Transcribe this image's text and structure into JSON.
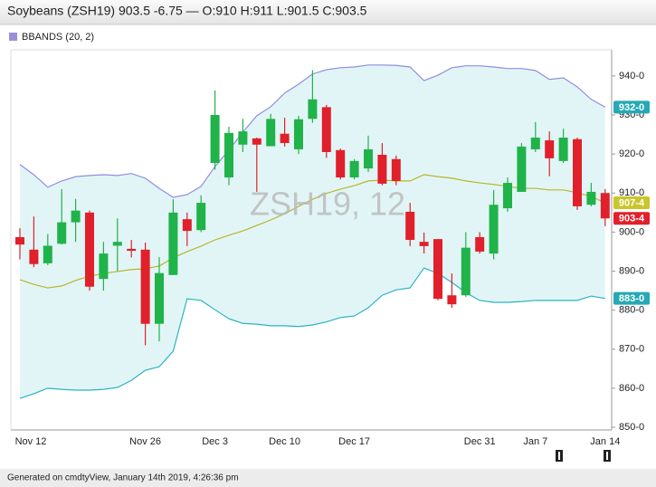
{
  "chart_data": {
    "type": "candlestick",
    "title": "Soybeans (ZSH19) 903.5 -6.75 — O:910 H:911 L:901.5 C:903.5",
    "watermark": "ZSH19, 12",
    "footer": "Generated on cmdtyView, January 14th 2019, 4:26:36 pm",
    "categories": [
      "Nov 12",
      null,
      null,
      null,
      null,
      null,
      null,
      null,
      null,
      "Nov 26",
      null,
      null,
      null,
      null,
      "Dec 3",
      null,
      null,
      null,
      null,
      "Dec 10",
      null,
      null,
      null,
      null,
      "Dec 17",
      null,
      null,
      null,
      null,
      null,
      null,
      null,
      null,
      "Dec 31",
      null,
      null,
      null,
      "Jan 7",
      null,
      null,
      null,
      null,
      "Jan 14"
    ],
    "up_color": "#1fb34a",
    "down_color": "#e0202a",
    "open": [
      898.7,
      895.5,
      892,
      897,
      902.5,
      905,
      888,
      896.5,
      895.7,
      895.5,
      876.5,
      889,
      903.3,
      900.5,
      917.7,
      914,
      922.4,
      924,
      922,
      925.2,
      921.2,
      929,
      932,
      921,
      914,
      916.3,
      919.8,
      918.7,
      905.2,
      897.5,
      898.2,
      883.8,
      883.8,
      898.7,
      894.5,
      906.1,
      910.3,
      921.2,
      923.5,
      918.2,
      923.8,
      907,
      910
    ],
    "high": [
      901,
      904,
      899.5,
      911,
      908.5,
      905.5,
      897.5,
      903.5,
      898,
      897.3,
      893.6,
      908.4,
      905,
      909.4,
      936.3,
      927,
      929,
      924.2,
      930.3,
      929.3,
      929.8,
      941.5,
      932.6,
      921.4,
      918.7,
      924.7,
      922.8,
      919.6,
      907.5,
      899.9,
      898.2,
      889.4,
      900,
      900,
      910.8,
      914,
      922.8,
      928.2,
      925.8,
      926.5,
      924.2,
      912.6,
      911
    ],
    "low": [
      893,
      891,
      891.5,
      896.8,
      897.5,
      885,
      885,
      890,
      893.5,
      871,
      872,
      889,
      896.4,
      900,
      916,
      912,
      920.5,
      910.3,
      922,
      921.9,
      920,
      928,
      919,
      913.5,
      913.5,
      915.4,
      912,
      912,
      896.4,
      894.5,
      882.5,
      880.6,
      883.4,
      894.5,
      893,
      905.2,
      910.3,
      920.5,
      914.3,
      917.7,
      905.7,
      906.6,
      901.5
    ],
    "close": [
      896.8,
      891.8,
      896.5,
      902.5,
      905.5,
      886,
      894.5,
      897.5,
      895.2,
      876.5,
      889.5,
      905,
      900.3,
      907.5,
      930,
      925.4,
      925.8,
      922.4,
      929,
      922.8,
      928.9,
      934,
      920.5,
      914,
      918.2,
      921.2,
      912.4,
      913.1,
      898,
      896.4,
      882.9,
      881.5,
      896,
      895,
      907,
      912.6,
      921.9,
      924.2,
      918.9,
      924.2,
      906.6,
      910.3,
      903.5
    ],
    "indicator": {
      "name": "BBANDS (20, 2)",
      "color": "#9b8fd9",
      "fill": "#e2f5f6",
      "upper_color": "#8e8ee0",
      "middle_color": "#b8b62c",
      "lower_color": "#2ab3c4",
      "upper": [
        917.3,
        914.7,
        911.5,
        913.1,
        914.2,
        914.5,
        914.7,
        914.5,
        915,
        913.8,
        911.2,
        908.9,
        909.6,
        911.7,
        916.8,
        921,
        925.6,
        929.8,
        932.1,
        935.6,
        937.9,
        940.5,
        941.6,
        942.1,
        942.3,
        942.8,
        942.8,
        942.7,
        942.3,
        938.8,
        940.2,
        942.1,
        942.6,
        942.6,
        942.3,
        941.9,
        941.9,
        941.4,
        939.1,
        939.5,
        937.2,
        934,
        932
      ],
      "middle": [
        887.8,
        886.6,
        885.7,
        886.2,
        887.6,
        888.7,
        889.4,
        889.9,
        890.4,
        890.6,
        891.3,
        893.4,
        895,
        896.4,
        898,
        899.2,
        900.3,
        901.7,
        903.1,
        904.7,
        906.6,
        908.4,
        909.9,
        911,
        911.9,
        913.1,
        913.3,
        913.1,
        913.1,
        914.7,
        914.2,
        913.8,
        913.1,
        912.6,
        912.2,
        911.7,
        911.2,
        911.2,
        910.8,
        910.8,
        910.1,
        909.1,
        907.5
      ],
      "lower": [
        857.4,
        858.6,
        860,
        859.7,
        859.5,
        859.5,
        859.7,
        860.2,
        862,
        864.6,
        865.5,
        869.5,
        882.9,
        882.5,
        880.1,
        877.8,
        876.6,
        876.4,
        876,
        876,
        875.8,
        876.2,
        877,
        878.1,
        878.5,
        880.6,
        883.8,
        885.2,
        885.7,
        890.8,
        889.4,
        887.1,
        884.5,
        882.5,
        882,
        882,
        882.2,
        882.5,
        882.5,
        882.5,
        882.5,
        883.6,
        883
      ]
    },
    "price_tags": [
      {
        "value": 932,
        "label": "932-0",
        "color": "#26a9b5"
      },
      {
        "value": 907.5,
        "label": "907-4",
        "color": "#c9c62c"
      },
      {
        "value": 903.5,
        "label": "903-4",
        "color": "#e0202a"
      },
      {
        "value": 883,
        "label": "883-0",
        "color": "#26a9b5"
      }
    ],
    "ylim": [
      849.3,
      946.7
    ],
    "yticks": [
      {
        "value": 850,
        "label": "850-0"
      },
      {
        "value": 860,
        "label": "860-0"
      },
      {
        "value": 870,
        "label": "870-0"
      },
      {
        "value": 880,
        "label": "880-0"
      },
      {
        "value": 890,
        "label": "890-0"
      },
      {
        "value": 900,
        "label": "900-0"
      },
      {
        "value": 910,
        "label": "910-0"
      },
      {
        "value": 920,
        "label": "920-0"
      },
      {
        "value": 930,
        "label": "930-0"
      },
      {
        "value": 940,
        "label": "940-0"
      }
    ]
  }
}
